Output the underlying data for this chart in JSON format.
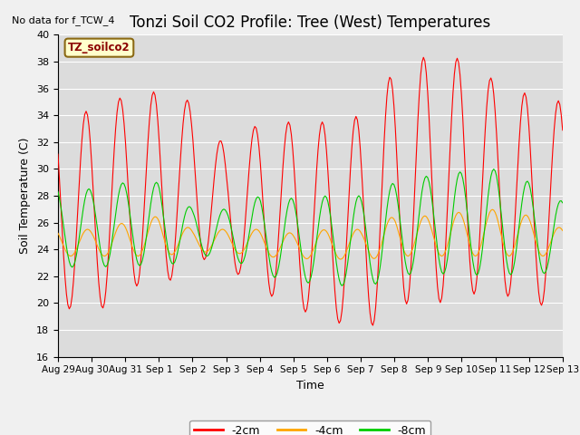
{
  "title": "Tonzi Soil CO2 Profile: Tree (West) Temperatures",
  "subtitle": "No data for f_TCW_4",
  "ylabel": "Soil Temperature (C)",
  "xlabel": "Time",
  "legend_label": "TZ_soilco2",
  "series_labels": [
    "-2cm",
    "-4cm",
    "-8cm"
  ],
  "series_colors": [
    "#ff0000",
    "#ffa500",
    "#00cc00"
  ],
  "ylim": [
    16,
    40
  ],
  "xtick_labels": [
    "Aug 29",
    "Aug 30",
    "Aug 31",
    "Sep 1",
    "Sep 2",
    "Sep 3",
    "Sep 4",
    "Sep 5",
    "Sep 6",
    "Sep 7",
    "Sep 8",
    "Sep 9",
    "Sep 10",
    "Sep 11",
    "Sep 12",
    "Sep 13"
  ],
  "background_color": "#dcdcdc",
  "grid_color": "#ffffff",
  "title_fontsize": 12,
  "axis_fontsize": 9,
  "tick_fontsize": 8
}
